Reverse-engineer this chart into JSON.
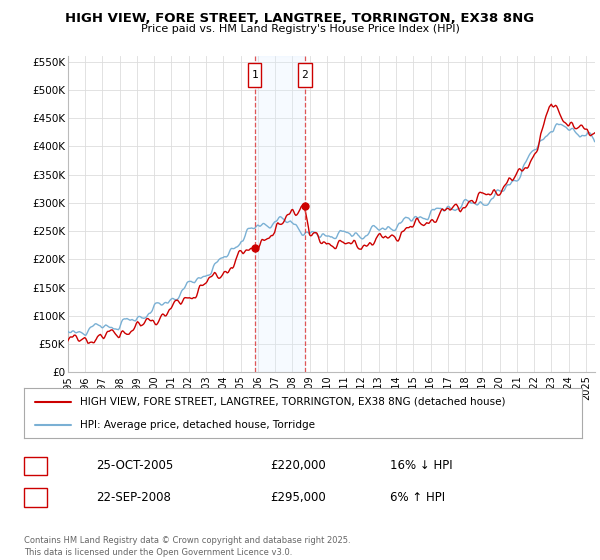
{
  "title": "HIGH VIEW, FORE STREET, LANGTREE, TORRINGTON, EX38 8NG",
  "subtitle": "Price paid vs. HM Land Registry's House Price Index (HPI)",
  "ylim": [
    0,
    560000
  ],
  "yticks": [
    0,
    50000,
    100000,
    150000,
    200000,
    250000,
    300000,
    350000,
    400000,
    450000,
    500000,
    550000
  ],
  "ytick_labels": [
    "£0",
    "£50K",
    "£100K",
    "£150K",
    "£200K",
    "£250K",
    "£300K",
    "£350K",
    "£400K",
    "£450K",
    "£500K",
    "£550K"
  ],
  "xlim_start": 1995.0,
  "xlim_end": 2025.5,
  "property_color": "#cc0000",
  "hpi_color": "#7ab0d4",
  "shade_color": "#ddeeff",
  "vline1_x": 2005.82,
  "vline2_x": 2008.73,
  "sale1_price_val": 220000,
  "sale2_price_val": 295000,
  "sale1_date": "25-OCT-2005",
  "sale1_price": "£220,000",
  "sale1_hpi": "16% ↓ HPI",
  "sale2_date": "22-SEP-2008",
  "sale2_price": "£295,000",
  "sale2_hpi": "6% ↑ HPI",
  "legend_line1": "HIGH VIEW, FORE STREET, LANGTREE, TORRINGTON, EX38 8NG (detached house)",
  "legend_line2": "HPI: Average price, detached house, Torridge",
  "footnote": "Contains HM Land Registry data © Crown copyright and database right 2025.\nThis data is licensed under the Open Government Licence v3.0.",
  "background_color": "#ffffff",
  "grid_color": "#dddddd"
}
